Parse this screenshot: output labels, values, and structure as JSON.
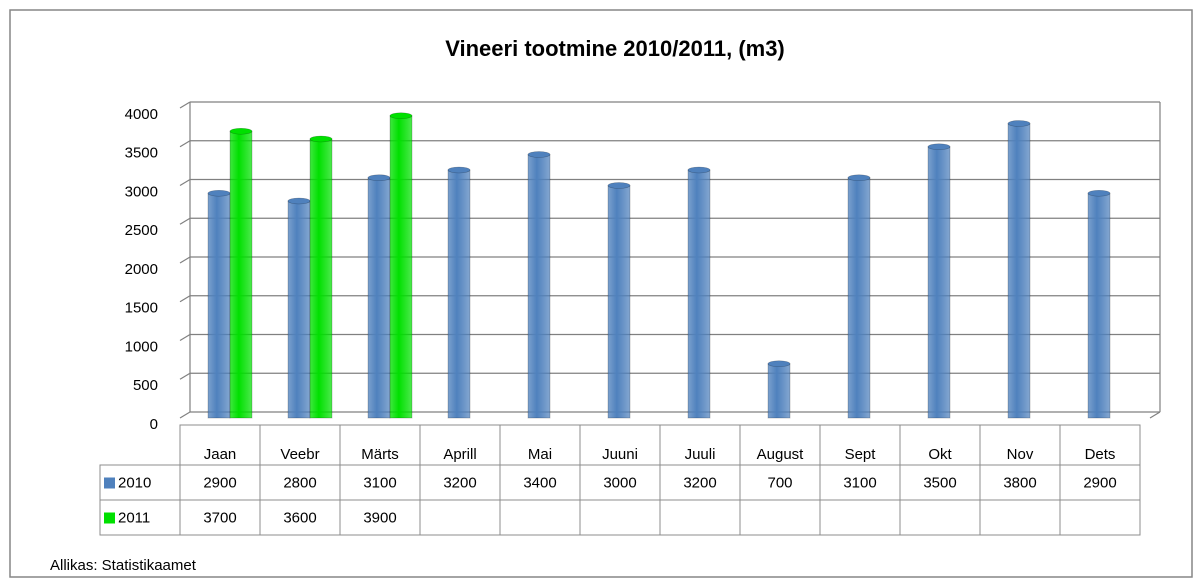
{
  "chart_data": {
    "type": "bar",
    "title": "Vineeri tootmine 2010/2011, (m3)",
    "categories": [
      "Jaan",
      "Veebr",
      "Märts",
      "Aprill",
      "Mai",
      "Juuni",
      "Juuli",
      "August",
      "Sept",
      "Okt",
      "Nov",
      "Dets"
    ],
    "series": [
      {
        "name": "2010",
        "color": "#4f81bd",
        "values": [
          2900,
          2800,
          3100,
          3200,
          3400,
          3000,
          3200,
          700,
          3100,
          3500,
          3800,
          2900
        ]
      },
      {
        "name": "2011",
        "color": "#00e000",
        "values": [
          3700,
          3600,
          3900,
          null,
          null,
          null,
          null,
          null,
          null,
          null,
          null,
          null
        ]
      }
    ],
    "ylim": [
      0,
      4000
    ],
    "yticks": [
      0,
      500,
      1000,
      1500,
      2000,
      2500,
      3000,
      3500,
      4000
    ],
    "grid": true,
    "source": "Allikas: Statistikaamet"
  }
}
